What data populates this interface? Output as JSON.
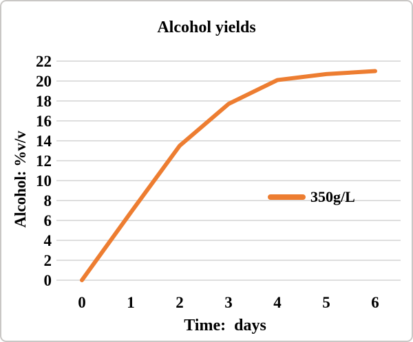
{
  "chart_data": {
    "type": "line",
    "title": "Alcohol yields",
    "xlabel": "Time:  days",
    "ylabel": "Alcohol: %v/v",
    "x": [
      0,
      1,
      2,
      3,
      4,
      5,
      6
    ],
    "series": [
      {
        "name": "350g/L",
        "color": "#ED7D31",
        "values": [
          0,
          6.8,
          13.5,
          17.7,
          20.1,
          20.7,
          21.0
        ]
      }
    ],
    "ylim": [
      0,
      22
    ],
    "ytick_step": 2,
    "grid": "horizontal",
    "gridline_color": "#D9D9D9",
    "legend_position": "middle-right",
    "background": "#FFFFFF"
  }
}
